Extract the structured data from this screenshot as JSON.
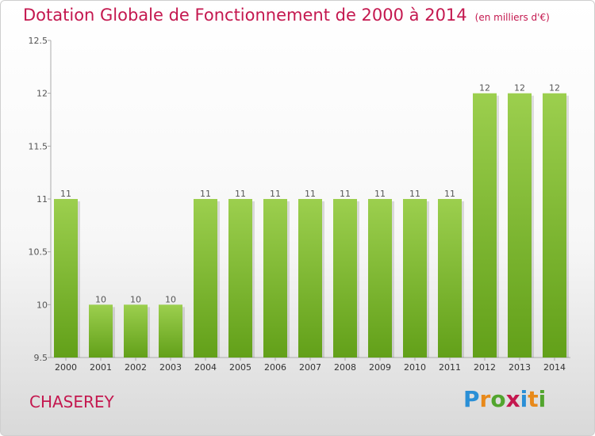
{
  "title": "Dotation Globale de Fonctionnement de 2000 à 2014",
  "unit": "(en milliers d'€)",
  "commune": "CHASEREY",
  "logo": "Proxiti",
  "colors": {
    "bar_top": "#9ccf4e",
    "bar_bottom": "#62a019",
    "title": "#c4184f"
  },
  "chart_data": {
    "type": "bar",
    "categories": [
      "2000",
      "2001",
      "2002",
      "2003",
      "2004",
      "2005",
      "2006",
      "2007",
      "2008",
      "2009",
      "2010",
      "2011",
      "2012",
      "2013",
      "2014"
    ],
    "values": [
      11,
      10,
      10,
      10,
      11,
      11,
      11,
      11,
      11,
      11,
      11,
      11,
      12,
      12,
      12
    ],
    "data_labels": [
      "11",
      "10",
      "10",
      "10",
      "11",
      "11",
      "11",
      "11",
      "11",
      "11",
      "11",
      "11",
      "12",
      "12",
      "12"
    ],
    "y_ticks": [
      "9.5",
      "10",
      "10.5",
      "11",
      "11.5",
      "12",
      "12.5"
    ],
    "ylim": [
      9.5,
      12.5
    ],
    "grid": false,
    "legend": "none"
  }
}
